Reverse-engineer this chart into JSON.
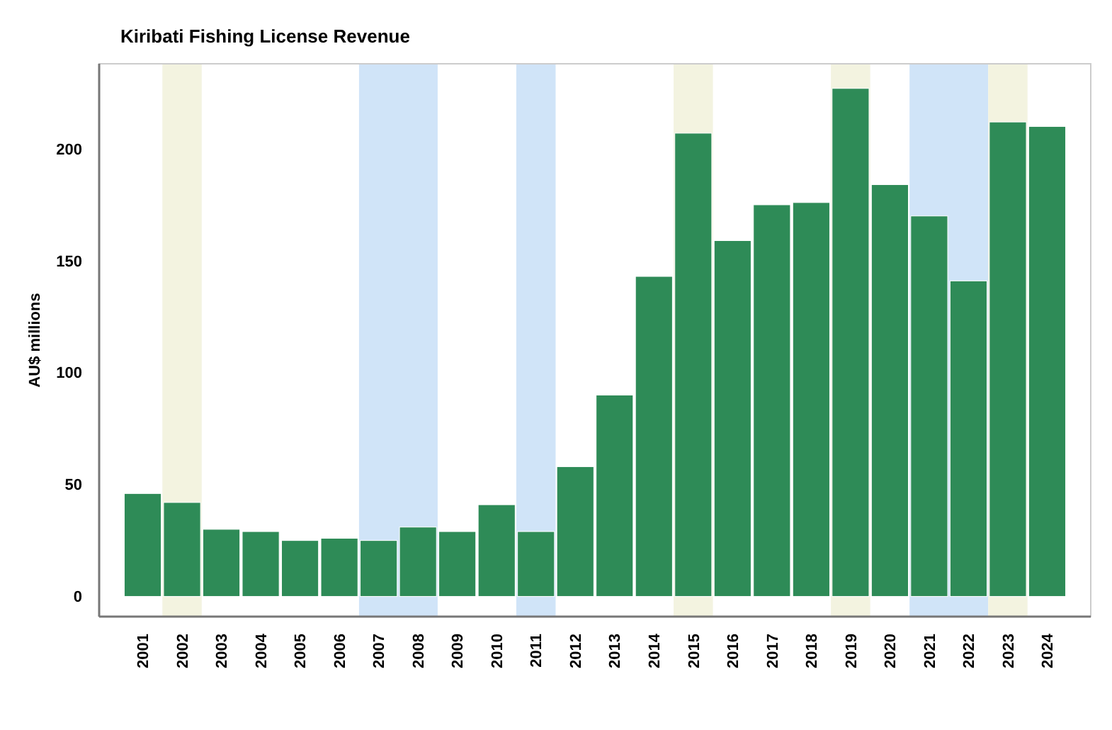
{
  "chart_data": {
    "type": "bar",
    "title": "Kiribati Fishing License Revenue",
    "ylabel": "AU$ millions",
    "categories": [
      "2001",
      "2002",
      "2003",
      "2004",
      "2005",
      "2006",
      "2007",
      "2008",
      "2009",
      "2010",
      "2011",
      "2012",
      "2013",
      "2014",
      "2015",
      "2016",
      "2017",
      "2018",
      "2019",
      "2020",
      "2021",
      "2022",
      "2023",
      "2024"
    ],
    "values": [
      46,
      42,
      30,
      29,
      25,
      26,
      25,
      31,
      29,
      41,
      29,
      58,
      90,
      143,
      207,
      159,
      175,
      176,
      227,
      184,
      170,
      141,
      212,
      210
    ],
    "color": "#2e8b57",
    "ylim": [
      -9,
      238
    ],
    "yticks": [
      0,
      50,
      100,
      150,
      200
    ],
    "grid": false,
    "bands": [
      {
        "axis": "x",
        "from": "2002",
        "to": "2002",
        "color": "#f3f3e0"
      },
      {
        "axis": "x",
        "from": "2007",
        "to": "2008",
        "color": "#d0e4f8"
      },
      {
        "axis": "x",
        "from": "2011",
        "to": "2011",
        "color": "#d0e4f8"
      },
      {
        "axis": "x",
        "from": "2015",
        "to": "2015",
        "color": "#f3f3e0"
      },
      {
        "axis": "x",
        "from": "2019",
        "to": "2019",
        "color": "#f3f3e0"
      },
      {
        "axis": "x",
        "from": "2021",
        "to": "2022",
        "color": "#d0e4f8"
      },
      {
        "axis": "x",
        "from": "2023",
        "to": "2023",
        "color": "#f3f3e0"
      }
    ]
  }
}
